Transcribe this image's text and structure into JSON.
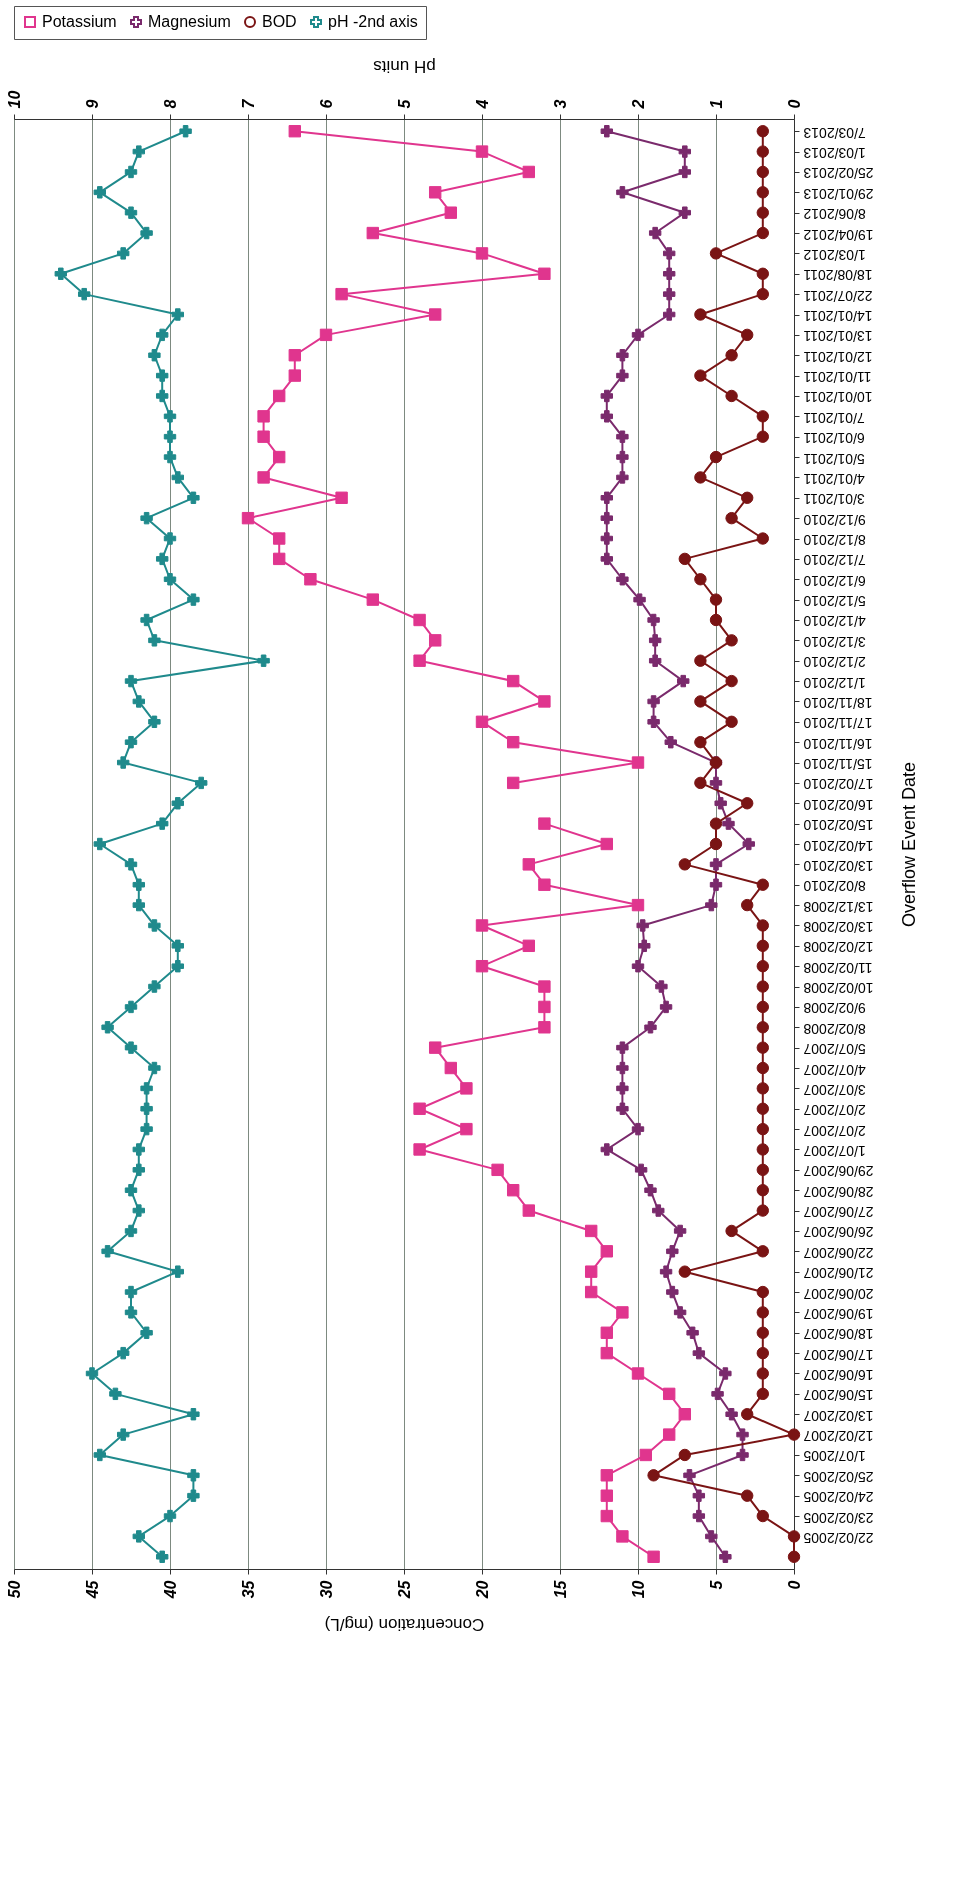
{
  "chart_data": {
    "type": "line",
    "orientation": "horizontal",
    "xlabel": "Concentration (mg/L)",
    "x2label": "pH units",
    "ylabel": "Overflow Event Date",
    "categories": [
      "7/03/2013",
      "1/03/2013",
      "25/02/2013",
      "29/01/2013",
      "8/06/2012",
      "19/04/2012",
      "1/03/2012",
      "18/08/2011",
      "22/07/2011",
      "14/01/2011",
      "13/01/2011",
      "12/01/2011",
      "11/01/2011",
      "10/01/2011",
      "7/01/2011",
      "6/01/2011",
      "5/01/2011",
      "4/01/2011",
      "3/01/2011",
      "9/12/2010",
      "8/12/2010",
      "7/12/2010",
      "6/12/2010",
      "5/12/2010",
      "4/12/2010",
      "3/12/2010",
      "2/12/2010",
      "1/12/2010",
      "18/11/2010",
      "17/11/2010",
      "16/11/2010",
      "15/11/2010",
      "17/02/2010",
      "16/02/2010",
      "15/02/2010",
      "14/02/2010",
      "13/02/2010",
      "8/02/2010",
      "13/12/2008",
      "13/02/2008",
      "12/02/2008",
      "11/02/2008",
      "10/02/2008",
      "9/02/2008",
      "8/02/2008",
      "5/07/2007",
      "4/07/2007",
      "3/07/2007",
      "2/07/2007",
      "2/07/2007",
      "1/07/2007",
      "29/06/2007",
      "28/06/2007",
      "27/06/2007",
      "26/06/2007",
      "22/06/2007",
      "21/06/2007",
      "20/06/2007",
      "19/06/2007",
      "18/06/2007",
      "17/06/2007",
      "16/06/2007",
      "15/06/2007",
      "13/02/2007",
      "12/02/2007",
      "1/07/2005",
      "25/02/2005",
      "24/02/2005",
      "23/02/2005",
      "22/02/2005",
      null
    ],
    "series": [
      {
        "name": "Potassium",
        "color": "#e0358e",
        "marker": "square",
        "values": [
          32,
          20,
          17,
          23,
          22,
          27,
          20,
          16,
          29,
          23,
          30,
          32,
          32,
          33,
          34,
          34,
          33,
          34,
          29,
          35,
          33,
          33,
          31,
          27,
          24,
          23,
          24,
          18,
          16,
          20,
          18,
          10,
          18,
          null,
          16,
          12,
          17,
          16,
          10,
          20,
          17,
          20,
          16,
          16,
          16,
          23,
          22,
          21,
          24,
          21,
          24,
          19,
          18,
          17,
          13,
          12,
          13,
          13,
          11,
          12,
          12,
          10,
          8,
          7,
          8,
          9.5,
          12,
          12,
          12,
          11,
          9
        ]
      },
      {
        "name": "Magnesium",
        "color": "#7a2a6c",
        "marker": "cross",
        "values": [
          12,
          7,
          7,
          11,
          7,
          8.9,
          8,
          8,
          8,
          8,
          10,
          11,
          11,
          12,
          12,
          11,
          11,
          11,
          12,
          12,
          12,
          12,
          11,
          9.9,
          9,
          8.9,
          8.9,
          7.1,
          9,
          9,
          7.9,
          5,
          5,
          4.7,
          4.2,
          2.9,
          5,
          5,
          5.3,
          9.7,
          9.6,
          10,
          8.5,
          8.2,
          9.2,
          11,
          11,
          11,
          11,
          10,
          12,
          9.8,
          9.2,
          8.7,
          7.3,
          7.8,
          8.2,
          7.8,
          7.3,
          6.5,
          6.1,
          4.4,
          4.9,
          4.0,
          3.3,
          3.3,
          6.7,
          6.1,
          6.1,
          5.3,
          4.4
        ]
      },
      {
        "name": "BOD",
        "color": "#7a1414",
        "marker": "circle",
        "values": [
          2,
          2,
          2,
          2,
          2,
          2,
          5,
          2,
          2,
          6,
          3,
          4,
          6,
          4,
          2,
          2,
          5,
          6,
          3,
          4,
          2,
          7,
          6,
          5,
          5,
          4,
          6,
          4,
          6,
          4,
          6,
          5,
          6,
          3,
          5,
          5,
          7,
          2,
          3,
          2,
          2,
          2,
          2,
          2,
          2,
          2,
          2,
          2,
          2,
          2,
          2,
          2,
          2,
          2,
          4,
          2,
          7,
          2,
          2,
          2,
          2,
          2,
          2,
          3,
          0,
          7,
          9,
          3,
          2,
          0,
          0
        ]
      },
      {
        "name": "pH -2nd axis",
        "color": "#1f8a8c",
        "marker": "cross",
        "axis": "x2",
        "values": [
          7.8,
          8.4,
          8.5,
          8.9,
          8.5,
          8.3,
          8.6,
          9.4,
          9.1,
          7.9,
          8.1,
          8.2,
          8.1,
          8.1,
          8.0,
          8.0,
          8.0,
          7.9,
          7.7,
          8.3,
          8.0,
          8.1,
          8.0,
          7.7,
          8.3,
          8.2,
          6.8,
          8.5,
          8.4,
          8.2,
          8.5,
          8.6,
          7.6,
          7.9,
          8.1,
          8.9,
          8.5,
          8.4,
          8.4,
          8.2,
          7.9,
          7.9,
          8.2,
          8.5,
          8.8,
          8.5,
          8.2,
          8.3,
          8.3,
          8.3,
          8.4,
          8.4,
          8.5,
          8.4,
          8.5,
          8.8,
          7.9,
          8.5,
          8.5,
          8.3,
          8.6,
          9.0,
          8.7,
          7.7,
          8.6,
          8.9,
          7.7,
          7.7,
          8.0,
          8.4,
          8.1
        ]
      }
    ],
    "xlim": [
      50,
      0
    ],
    "xticks": [
      0,
      5,
      10,
      15,
      20,
      25,
      30,
      35,
      40,
      45,
      50
    ],
    "x2lim": [
      10,
      0
    ],
    "x2ticks": [
      0,
      1,
      2,
      3,
      4,
      5,
      6,
      7,
      8,
      9,
      10
    ],
    "grid": "x",
    "legend": "top"
  }
}
